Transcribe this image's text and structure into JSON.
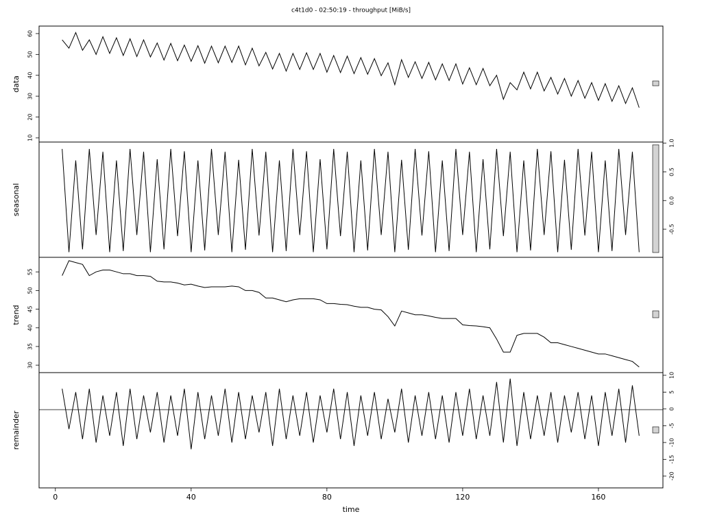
{
  "chart_data": [
    {
      "type": "line",
      "title": "c4t1d0 - 02:50:19 - throughput [MiB/s]",
      "ylabel": "data",
      "color": "#000000",
      "x": [
        2,
        4,
        6,
        8,
        10,
        12,
        14,
        16,
        18,
        20,
        22,
        24,
        26,
        28,
        30,
        32,
        34,
        36,
        38,
        40,
        42,
        44,
        46,
        48,
        50,
        52,
        54,
        56,
        58,
        60,
        62,
        64,
        66,
        68,
        70,
        72,
        74,
        76,
        78,
        80,
        82,
        84,
        86,
        88,
        90,
        92,
        94,
        96,
        98,
        100,
        102,
        104,
        106,
        108,
        110,
        112,
        114,
        116,
        118,
        120,
        122,
        124,
        126,
        128,
        130,
        132,
        134,
        136,
        138,
        140,
        142,
        144,
        146,
        148,
        150,
        152,
        154,
        156,
        158,
        160,
        162,
        164,
        166,
        168,
        170,
        172
      ],
      "values": [
        57,
        53,
        60.5,
        52,
        57,
        50,
        58.5,
        50.5,
        58,
        49.5,
        57.5,
        49,
        57,
        48.8,
        55.5,
        47.3,
        55.3,
        47,
        54.5,
        46.7,
        54.2,
        45.8,
        54,
        46,
        54,
        46.2,
        54,
        45,
        53,
        44.5,
        51,
        43,
        50.5,
        42,
        50.5,
        42.8,
        50.8,
        42.8,
        50.5,
        41.5,
        49.5,
        41.3,
        49.2,
        40.8,
        48.5,
        40.5,
        48,
        39.8,
        46,
        35.5,
        47.5,
        39,
        46.5,
        38.5,
        46.2,
        37.8,
        45.5,
        37.5,
        45.5,
        35.8,
        43.6,
        35.5,
        43.3,
        35,
        40,
        28.5,
        36.5,
        33,
        41.5,
        33.5,
        41.5,
        32.5,
        39,
        31,
        38.5,
        30,
        37.5,
        29,
        36.5,
        28,
        36,
        27.5,
        35,
        26.5,
        34,
        24.5
      ],
      "xlim": [
        -4.8,
        179
      ],
      "ylim": [
        8.0,
        63.6
      ],
      "yticks": [
        10,
        20,
        30,
        40,
        50,
        60
      ]
    },
    {
      "type": "line",
      "ylabel": "seasonal",
      "color": "#000000",
      "x": [
        2,
        4,
        6,
        8,
        10,
        12,
        14,
        16,
        18,
        20,
        22,
        24,
        26,
        28,
        30,
        32,
        34,
        36,
        38,
        40,
        42,
        44,
        46,
        48,
        50,
        52,
        54,
        56,
        58,
        60,
        62,
        64,
        66,
        68,
        70,
        72,
        74,
        76,
        78,
        80,
        82,
        84,
        86,
        88,
        90,
        92,
        94,
        96,
        98,
        100,
        102,
        104,
        106,
        108,
        110,
        112,
        114,
        116,
        118,
        120,
        122,
        124,
        126,
        128,
        130,
        132,
        134,
        136,
        138,
        140,
        142,
        144,
        146,
        148,
        150,
        152,
        154,
        156,
        158,
        160,
        162,
        164,
        166,
        168,
        170,
        172
      ],
      "values": [
        0.9,
        -0.9,
        0.7,
        -0.85,
        0.9,
        -0.6,
        0.85,
        -0.9,
        0.7,
        -0.88,
        0.9,
        -0.6,
        0.85,
        -0.9,
        0.72,
        -0.85,
        0.9,
        -0.62,
        0.86,
        -0.9,
        0.7,
        -0.87,
        0.9,
        -0.6,
        0.85,
        -0.9,
        0.71,
        -0.86,
        0.9,
        -0.61,
        0.85,
        -0.9,
        0.7,
        -0.88,
        0.9,
        -0.6,
        0.86,
        -0.9,
        0.72,
        -0.85,
        0.9,
        -0.62,
        0.85,
        -0.9,
        0.7,
        -0.87,
        0.9,
        -0.6,
        0.85,
        -0.9,
        0.71,
        -0.86,
        0.9,
        -0.61,
        0.86,
        -0.9,
        0.7,
        -0.88,
        0.9,
        -0.6,
        0.85,
        -0.9,
        0.72,
        -0.85,
        0.9,
        -0.62,
        0.85,
        -0.9,
        0.7,
        -0.87,
        0.9,
        -0.6,
        0.86,
        -0.9,
        0.71,
        -0.86,
        0.9,
        -0.61,
        0.85,
        -0.9,
        0.7,
        -0.88,
        0.9,
        -0.6,
        0.85,
        -0.9
      ],
      "xlim": [
        -4.8,
        179
      ],
      "ylim": [
        -0.99,
        1.02
      ],
      "yticks": [
        -0.5,
        {
          "value": 0,
          "label": "0.0"
        },
        0.5,
        {
          "value": 1,
          "label": "1.0"
        }
      ]
    },
    {
      "type": "line",
      "ylabel": "trend",
      "color": "#000000",
      "x": [
        2,
        4,
        6,
        8,
        10,
        12,
        14,
        16,
        18,
        20,
        22,
        24,
        26,
        28,
        30,
        32,
        34,
        36,
        38,
        40,
        42,
        44,
        46,
        48,
        50,
        52,
        54,
        56,
        58,
        60,
        62,
        64,
        66,
        68,
        70,
        72,
        74,
        76,
        78,
        80,
        82,
        84,
        86,
        88,
        90,
        92,
        94,
        96,
        98,
        100,
        102,
        104,
        106,
        108,
        110,
        112,
        114,
        116,
        118,
        120,
        122,
        124,
        126,
        128,
        130,
        132,
        134,
        136,
        138,
        140,
        142,
        144,
        146,
        148,
        150,
        152,
        154,
        156,
        158,
        160,
        162,
        164,
        166,
        168,
        170,
        172
      ],
      "values": [
        54,
        58,
        57.5,
        57,
        54,
        55,
        55.5,
        55.5,
        55,
        54.5,
        54.5,
        54,
        54,
        53.8,
        52.5,
        52.3,
        52.3,
        52,
        51.5,
        51.7,
        51.2,
        50.8,
        51,
        51,
        51,
        51.2,
        51,
        50,
        50,
        49.5,
        48,
        48,
        47.5,
        47,
        47.5,
        47.8,
        47.8,
        47.8,
        47.5,
        46.5,
        46.5,
        46.3,
        46.2,
        45.8,
        45.5,
        45.5,
        45,
        44.8,
        43,
        40.5,
        44.5,
        44,
        43.5,
        43.5,
        43.2,
        42.8,
        42.5,
        42.5,
        42.5,
        40.8,
        40.6,
        40.5,
        40.3,
        40,
        37,
        33.5,
        33.5,
        38,
        38.5,
        38.5,
        38.5,
        37.5,
        36,
        36,
        35.5,
        35,
        34.5,
        34,
        33.5,
        33,
        33,
        32.5,
        32,
        31.5,
        31,
        29.5
      ],
      "xlim": [
        -4.8,
        179
      ],
      "ylim": [
        28.0,
        58.9
      ],
      "yticks": [
        30,
        35,
        40,
        45,
        50,
        55
      ]
    },
    {
      "type": "line",
      "ylabel": "remainder",
      "xlabel": "time",
      "color": "#000000",
      "x": [
        2,
        4,
        6,
        8,
        10,
        12,
        14,
        16,
        18,
        20,
        22,
        24,
        26,
        28,
        30,
        32,
        34,
        36,
        38,
        40,
        42,
        44,
        46,
        48,
        50,
        52,
        54,
        56,
        58,
        60,
        62,
        64,
        66,
        68,
        70,
        72,
        74,
        76,
        78,
        80,
        82,
        84,
        86,
        88,
        90,
        92,
        94,
        96,
        98,
        100,
        102,
        104,
        106,
        108,
        110,
        112,
        114,
        116,
        118,
        120,
        122,
        124,
        126,
        128,
        130,
        132,
        134,
        136,
        138,
        140,
        142,
        144,
        146,
        148,
        150,
        152,
        154,
        156,
        158,
        160,
        162,
        164,
        166,
        168,
        170,
        172
      ],
      "values": [
        6,
        -6,
        5,
        -9,
        6,
        -10,
        4,
        -8,
        5,
        -11,
        6,
        -9,
        4,
        -7,
        5,
        -10,
        4,
        -8,
        6,
        -12,
        5,
        -9,
        4,
        -8,
        6,
        -10,
        5,
        -9,
        4,
        -7,
        5,
        -11,
        6,
        -9,
        4,
        -8,
        5,
        -10,
        4,
        -7,
        6,
        -9,
        5,
        -11,
        4,
        -8,
        5,
        -9,
        3,
        -7,
        6,
        -10,
        4,
        -8,
        5,
        -9,
        4,
        -10,
        5,
        -8,
        6,
        -9,
        4,
        -8,
        8,
        -10,
        9,
        -11,
        5,
        -9,
        4,
        -8,
        5,
        -10,
        4,
        -7,
        5,
        -9,
        4,
        -11,
        5,
        -8,
        6,
        -10,
        7,
        -8
      ],
      "xlim": [
        -4.8,
        179
      ],
      "ylim": [
        -23.5,
        10.8
      ],
      "yticks": [
        -20,
        -15,
        -10,
        -5,
        0,
        5,
        10
      ],
      "xticks": [
        0,
        40,
        80,
        120,
        160
      ]
    }
  ]
}
